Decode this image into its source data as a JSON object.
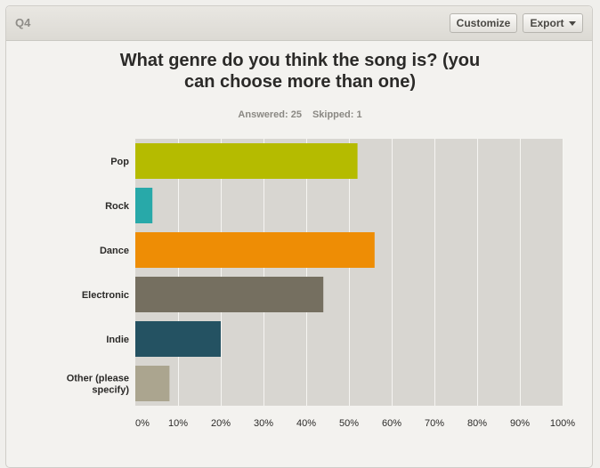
{
  "header": {
    "question_number": "Q4",
    "customize_label": "Customize",
    "export_label": "Export"
  },
  "question": {
    "line1": "What genre do you think the song is? (you",
    "line2": "can choose more than one)"
  },
  "stats": {
    "answered": "Answered: 25",
    "skipped": "Skipped: 1"
  },
  "colors": {
    "pop": "#b5bb00",
    "rock": "#28a9a9",
    "dance": "#ee8d05",
    "electronic": "#756f60",
    "indie": "#245262",
    "other": "#aba58f",
    "plot_bg": "#d8d6d1"
  },
  "chart_data": {
    "type": "bar",
    "orientation": "horizontal",
    "categories": [
      "Pop",
      "Rock",
      "Dance",
      "Electronic",
      "Indie",
      "Other (please specify)"
    ],
    "category_lines": [
      [
        "Pop"
      ],
      [
        "Rock"
      ],
      [
        "Dance"
      ],
      [
        "Electronic"
      ],
      [
        "Indie"
      ],
      [
        "Other (please",
        "specify)"
      ]
    ],
    "values": [
      52,
      4,
      56,
      44,
      20,
      8
    ],
    "unit": "%",
    "xlim": [
      0,
      100
    ],
    "xticks": [
      0,
      10,
      20,
      30,
      40,
      50,
      60,
      70,
      80,
      90,
      100
    ],
    "xtick_labels": [
      "0%",
      "10%",
      "20%",
      "30%",
      "40%",
      "50%",
      "60%",
      "70%",
      "80%",
      "90%",
      "100%"
    ],
    "bar_colors": [
      "#b5bb00",
      "#28a9a9",
      "#ee8d05",
      "#756f60",
      "#245262",
      "#aba58f"
    ],
    "grid": true,
    "legend": "none"
  }
}
